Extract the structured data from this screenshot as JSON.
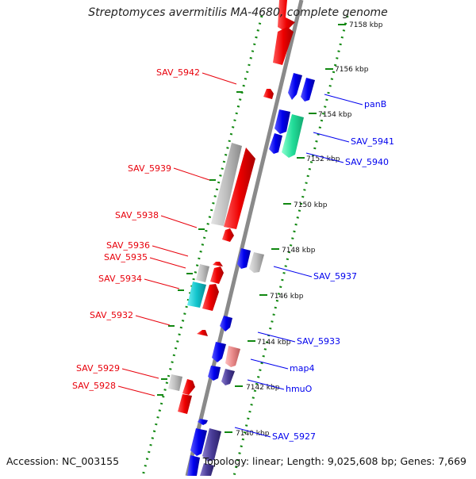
{
  "title": "Streptomyces avermitilis MA-4680, complete genome",
  "accession": "Accession: NC_003155",
  "summary": "Topology: linear; Length: 9,025,608 bp; Genes: 7,669",
  "colors": {
    "forward": "#e8000b",
    "reverse": "#0000ee",
    "backbone": "#888888",
    "dots": "#118811",
    "gray_gene": "#b8b8b8",
    "cyan_gene": "#11c4cc",
    "green_gene": "#22dd99",
    "pink_gene": "#e88888",
    "purple_gene": "#4a3d99"
  },
  "scale_ticks": [
    {
      "label": "7158 kbp"
    },
    {
      "label": "7156 kbp"
    },
    {
      "label": "7154 kbp"
    },
    {
      "label": "7152 kbp"
    },
    {
      "label": "7150 kbp"
    },
    {
      "label": "7148 kbp"
    },
    {
      "label": "7146 kbp"
    },
    {
      "label": "7144 kbp"
    },
    {
      "label": "7142 kbp"
    },
    {
      "label": "7140 kbp"
    }
  ],
  "left_labels": [
    {
      "text": "SAV_5942"
    },
    {
      "text": "SAV_5939"
    },
    {
      "text": "SAV_5938"
    },
    {
      "text": "SAV_5936"
    },
    {
      "text": "SAV_5935"
    },
    {
      "text": "SAV_5934"
    },
    {
      "text": "SAV_5932"
    },
    {
      "text": "SAV_5929"
    },
    {
      "text": "SAV_5928"
    }
  ],
  "right_labels": [
    {
      "text": "panB"
    },
    {
      "text": "SAV_5941"
    },
    {
      "text": "SAV_5940"
    },
    {
      "text": "SAV_5937"
    },
    {
      "text": "SAV_5933"
    },
    {
      "text": "map4"
    },
    {
      "text": "hmuO"
    },
    {
      "text": "SAV_5927"
    }
  ]
}
